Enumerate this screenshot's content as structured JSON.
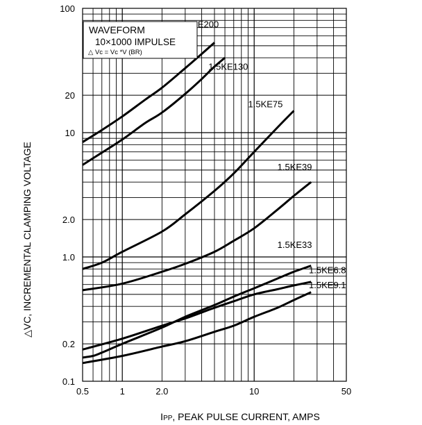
{
  "chart_data": {
    "type": "line",
    "title": "",
    "xlabel_prefix": "I",
    "xlabel_sub": "PP",
    "xlabel_rest": ", PEAK PULSE CURRENT, AMPS",
    "ylabel": "△VC, INCREMENTAL CLAMPING VOLTAGE",
    "x_scale": "log",
    "y_scale": "log",
    "xlim": [
      0.5,
      50
    ],
    "ylim": [
      0.1,
      100
    ],
    "grid": true,
    "x_ticks": [
      {
        "value": 0.5,
        "label": "0.5"
      },
      {
        "value": 1,
        "label": "1"
      },
      {
        "value": 2,
        "label": "2.0"
      },
      {
        "value": 10,
        "label": "10"
      },
      {
        "value": 50,
        "label": "50"
      }
    ],
    "y_ticks": [
      {
        "value": 0.1,
        "label": "0.1"
      },
      {
        "value": 0.2,
        "label": "0.2"
      },
      {
        "value": 1,
        "label": "1.0"
      },
      {
        "value": 2,
        "label": "2.0"
      },
      {
        "value": 10,
        "label": "10"
      },
      {
        "value": 20,
        "label": "20"
      },
      {
        "value": 100,
        "label": "100"
      }
    ],
    "legend_box": {
      "line1": "WAVEFORM",
      "line2": "10×1000 IMPULSE",
      "line3": "△ Vc = Vc *V (BR)"
    },
    "series": [
      {
        "name": "1.5KE200",
        "x": [
          0.5,
          0.7,
          1.0,
          1.5,
          2.0,
          3.0,
          4.0,
          5.0
        ],
        "y": [
          8.4,
          10.5,
          13.5,
          18.5,
          23,
          33,
          43,
          53
        ]
      },
      {
        "name": "1.5KE130",
        "x": [
          0.5,
          0.7,
          1.0,
          1.5,
          2.0,
          3.0,
          4.0,
          5.0,
          6.0
        ],
        "y": [
          5.5,
          6.9,
          8.8,
          12,
          14.5,
          20.5,
          27,
          34,
          40
        ]
      },
      {
        "name": "1.5KE75",
        "x": [
          0.5,
          0.7,
          1.0,
          2.0,
          3.0,
          5.0,
          7.0,
          10,
          15,
          20
        ],
        "y": [
          0.8,
          0.9,
          1.1,
          1.6,
          2.2,
          3.4,
          4.7,
          7,
          11,
          15
        ]
      },
      {
        "name": "1.5KE39",
        "x": [
          0.5,
          1.0,
          2.0,
          3.0,
          5.0,
          7.0,
          10,
          15,
          20,
          27
        ],
        "y": [
          0.54,
          0.61,
          0.76,
          0.88,
          1.1,
          1.35,
          1.7,
          2.4,
          3.1,
          4.0
        ]
      },
      {
        "name": "1.5KE33",
        "x": [
          0.5,
          0.6,
          0.7,
          1.0,
          2.0,
          3.0,
          5.0,
          7.0,
          10,
          15,
          20,
          27
        ],
        "y": [
          0.155,
          0.16,
          0.17,
          0.2,
          0.27,
          0.33,
          0.41,
          0.48,
          0.56,
          0.67,
          0.76,
          0.85
        ]
      },
      {
        "name": "1.5KE6.8",
        "x": [
          0.5,
          1.0,
          2.0,
          3.0,
          5.0,
          7.0,
          10,
          15,
          20,
          27
        ],
        "y": [
          0.18,
          0.22,
          0.28,
          0.32,
          0.39,
          0.44,
          0.5,
          0.55,
          0.59,
          0.63
        ]
      },
      {
        "name": "1.5KE9.1",
        "x": [
          0.5,
          1.0,
          2.0,
          3.0,
          5.0,
          7.0,
          10,
          15,
          20,
          27
        ],
        "y": [
          0.14,
          0.16,
          0.19,
          0.21,
          0.25,
          0.28,
          0.33,
          0.39,
          0.45,
          0.52
        ]
      }
    ],
    "series_labels": [
      {
        "text": "1.5KE200",
        "x": 2.7,
        "y": 70
      },
      {
        "text": "1.5KE130",
        "x": 4.5,
        "y": 32
      },
      {
        "text": "1.5KE75",
        "x": 9.0,
        "y": 16
      },
      {
        "text": "1.5KE39",
        "x": 15.0,
        "y": 5.0
      },
      {
        "text": "1.5KE33",
        "x": 15.0,
        "y": 1.18
      },
      {
        "text": "1.5KE6.8",
        "x": 26.0,
        "y": 0.74
      },
      {
        "text": "1.5KE9.1",
        "x": 26.0,
        "y": 0.56
      }
    ]
  }
}
